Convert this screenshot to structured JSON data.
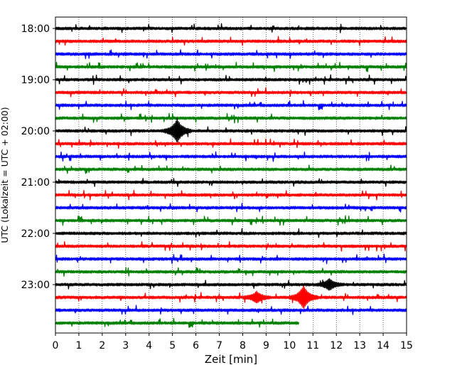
{
  "chart_data": {
    "type": "line",
    "title": "",
    "xlabel": "Zeit  [min]",
    "ylabel": "UTC (Lokalzeit = UTC + 02:00)",
    "xlim": [
      0,
      15
    ],
    "x_ticks": [
      "0",
      "1",
      "2",
      "3",
      "4",
      "5",
      "6",
      "7",
      "8",
      "9",
      "10",
      "11",
      "12",
      "13",
      "14",
      "15"
    ],
    "y_ticks": [
      "18:00",
      "19:00",
      "20:00",
      "21:00",
      "22:00",
      "23:00"
    ],
    "grid": "vertical dotted",
    "trace_interval_minutes": 15,
    "colors": [
      "#000000",
      "#ff0000",
      "#0000ff",
      "#008000"
    ],
    "series": [
      {
        "start": "18:00",
        "color": "#000000",
        "end_min": 15
      },
      {
        "start": "18:15",
        "color": "#ff0000",
        "end_min": 15
      },
      {
        "start": "18:30",
        "color": "#0000ff",
        "end_min": 15
      },
      {
        "start": "18:45",
        "color": "#008000",
        "end_min": 15
      },
      {
        "start": "19:00",
        "color": "#000000",
        "end_min": 15
      },
      {
        "start": "19:15",
        "color": "#ff0000",
        "end_min": 15
      },
      {
        "start": "19:30",
        "color": "#0000ff",
        "end_min": 15
      },
      {
        "start": "19:45",
        "color": "#008000",
        "end_min": 15
      },
      {
        "start": "20:00",
        "color": "#000000",
        "end_min": 15,
        "events": [
          {
            "x": 5.2,
            "amp": 2.6
          }
        ]
      },
      {
        "start": "20:15",
        "color": "#ff0000",
        "end_min": 15
      },
      {
        "start": "20:30",
        "color": "#0000ff",
        "end_min": 15
      },
      {
        "start": "20:45",
        "color": "#008000",
        "end_min": 15
      },
      {
        "start": "21:00",
        "color": "#000000",
        "end_min": 15
      },
      {
        "start": "21:15",
        "color": "#ff0000",
        "end_min": 15
      },
      {
        "start": "21:30",
        "color": "#0000ff",
        "end_min": 15
      },
      {
        "start": "21:45",
        "color": "#008000",
        "end_min": 15
      },
      {
        "start": "22:00",
        "color": "#000000",
        "end_min": 15
      },
      {
        "start": "22:15",
        "color": "#ff0000",
        "end_min": 15
      },
      {
        "start": "22:30",
        "color": "#0000ff",
        "end_min": 15
      },
      {
        "start": "22:45",
        "color": "#008000",
        "end_min": 15
      },
      {
        "start": "23:00",
        "color": "#000000",
        "end_min": 15,
        "events": [
          {
            "x": 11.7,
            "amp": 1.2
          }
        ]
      },
      {
        "start": "23:15",
        "color": "#ff0000",
        "end_min": 15,
        "events": [
          {
            "x": 10.6,
            "amp": 2.5
          },
          {
            "x": 8.6,
            "amp": 1.2
          }
        ]
      },
      {
        "start": "23:30",
        "color": "#0000ff",
        "end_min": 15
      },
      {
        "start": "23:45",
        "color": "#008000",
        "end_min": 10.4
      }
    ]
  }
}
